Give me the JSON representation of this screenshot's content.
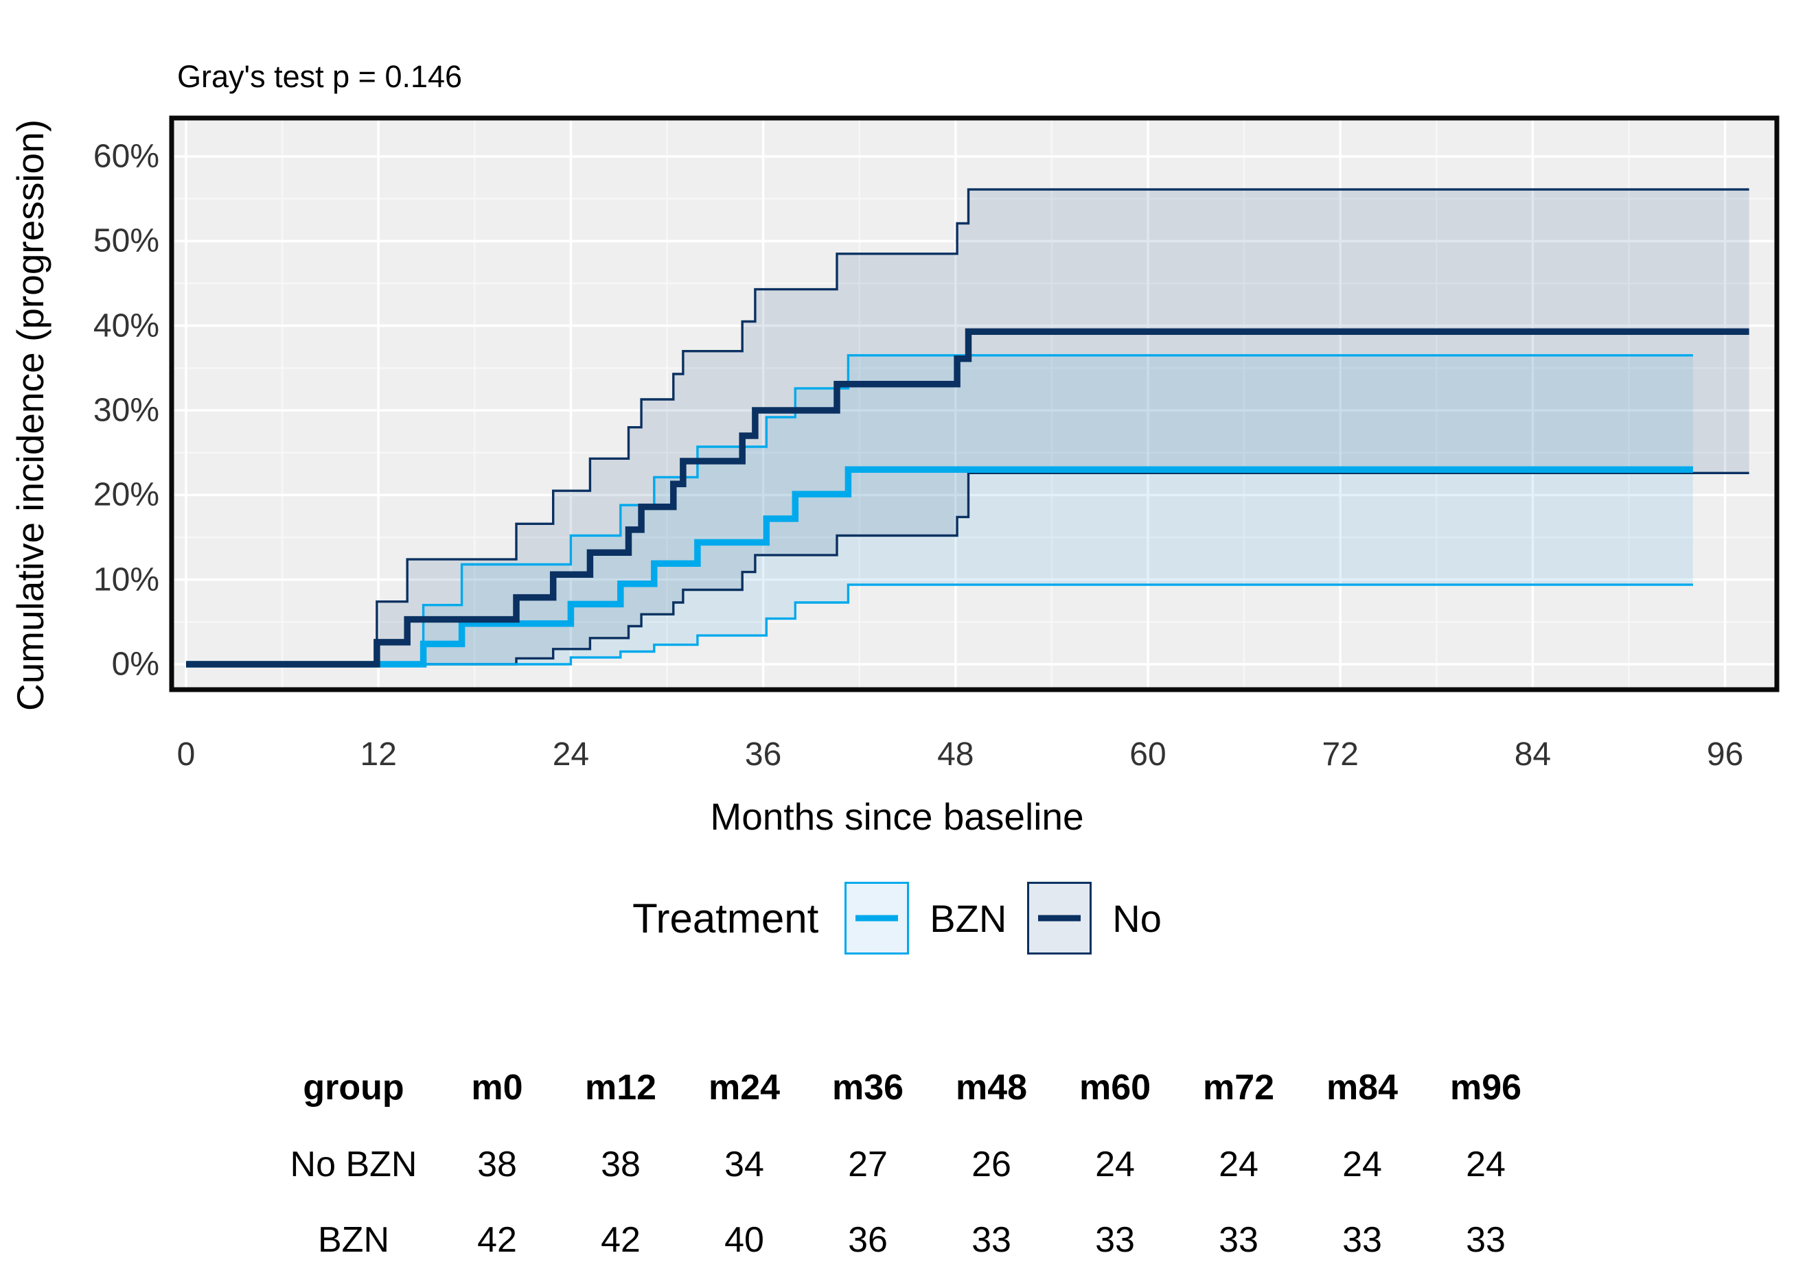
{
  "chart_data": {
    "type": "line",
    "subtype": "cumulative-incidence-step-curves-with-confidence-bands",
    "title": "Gray's test p = 0.146",
    "xlabel": "Months since baseline",
    "ylabel": "Cumulative incidence (progression)",
    "x_ticks": [
      0,
      12,
      24,
      36,
      48,
      60,
      72,
      84,
      96
    ],
    "x_minor_ticks": [
      6,
      18,
      30,
      42,
      54,
      66,
      78,
      90
    ],
    "y_ticks": [
      0,
      10,
      20,
      30,
      40,
      50,
      60
    ],
    "y_tick_labels": [
      "0%",
      "10%",
      "20%",
      "30%",
      "40%",
      "50%",
      "60%"
    ],
    "y_minor_ticks": [
      5,
      15,
      25,
      35,
      45,
      55
    ],
    "xlim": [
      -1,
      99
    ],
    "ylim": [
      -3,
      64.5
    ],
    "grid": true,
    "panel_bg": "#EFEFEF",
    "grid_major_color": "#FFFFFF",
    "grid_minor_color": "#F7F7F7",
    "legend_position": "bottom",
    "series": [
      {
        "name": "No",
        "group_label": "No BZN",
        "color": "#0A3161",
        "band_fill": "rgba(70,105,150,0.17)",
        "key_fill": "#E3E9F0",
        "end_month": 97.5,
        "estimate": [
          [
            0,
            0
          ],
          [
            11.9,
            2.6
          ],
          [
            13.8,
            5.3
          ],
          [
            20.6,
            7.9
          ],
          [
            22.9,
            10.6
          ],
          [
            25.2,
            13.2
          ],
          [
            27.6,
            15.9
          ],
          [
            28.4,
            18.6
          ],
          [
            30.4,
            21.3
          ],
          [
            31.0,
            24.0
          ],
          [
            34.7,
            27.0
          ],
          [
            35.5,
            30.0
          ],
          [
            40.6,
            33.1
          ],
          [
            48.1,
            36.1
          ],
          [
            48.8,
            39.3
          ]
        ],
        "upper_ci": [
          [
            11.9,
            7.4
          ],
          [
            13.8,
            12.4
          ],
          [
            20.6,
            16.6
          ],
          [
            22.9,
            20.5
          ],
          [
            25.2,
            24.3
          ],
          [
            27.6,
            28.0
          ],
          [
            28.4,
            31.3
          ],
          [
            30.4,
            34.3
          ],
          [
            31.0,
            37.0
          ],
          [
            34.7,
            40.5
          ],
          [
            35.5,
            44.3
          ],
          [
            40.6,
            48.5
          ],
          [
            48.1,
            52.1
          ],
          [
            48.8,
            56.1
          ]
        ],
        "lower_ci": [
          [
            20.6,
            0.7
          ],
          [
            22.9,
            1.8
          ],
          [
            25.2,
            3.1
          ],
          [
            27.6,
            4.5
          ],
          [
            28.4,
            5.9
          ],
          [
            30.4,
            7.3
          ],
          [
            31.0,
            8.8
          ],
          [
            34.7,
            10.9
          ],
          [
            35.5,
            12.9
          ],
          [
            40.6,
            15.2
          ],
          [
            48.1,
            17.4
          ],
          [
            48.8,
            22.6
          ]
        ]
      },
      {
        "name": "BZN",
        "group_label": "BZN",
        "color": "#00A9EC",
        "band_fill": "rgba(70,165,220,0.15)",
        "key_fill": "#E8F3FB",
        "end_month": 94,
        "estimate": [
          [
            0,
            0
          ],
          [
            14.8,
            2.4
          ],
          [
            17.2,
            4.8
          ],
          [
            24.0,
            7.1
          ],
          [
            27.1,
            9.5
          ],
          [
            29.2,
            11.9
          ],
          [
            31.9,
            14.4
          ],
          [
            36.2,
            17.2
          ],
          [
            38.0,
            20.1
          ],
          [
            41.3,
            23.0
          ]
        ],
        "upper_ci": [
          [
            14.8,
            7.0
          ],
          [
            17.2,
            11.8
          ],
          [
            24.0,
            15.2
          ],
          [
            27.1,
            18.8
          ],
          [
            29.2,
            22.1
          ],
          [
            31.9,
            25.7
          ],
          [
            36.2,
            29.2
          ],
          [
            38.0,
            32.6
          ],
          [
            41.3,
            36.5
          ]
        ],
        "lower_ci": [
          [
            24.0,
            0.8
          ],
          [
            27.1,
            1.5
          ],
          [
            29.2,
            2.3
          ],
          [
            31.9,
            3.4
          ],
          [
            36.2,
            5.4
          ],
          [
            38.0,
            7.3
          ],
          [
            41.3,
            9.4
          ]
        ]
      }
    ],
    "legend": {
      "title": "Treatment",
      "entries": [
        {
          "label": "BZN",
          "series": "BZN"
        },
        {
          "label": "No",
          "series": "No"
        }
      ]
    },
    "risk_table": {
      "headers": [
        "group",
        "m0",
        "m12",
        "m24",
        "m36",
        "m48",
        "m60",
        "m72",
        "m84",
        "m96"
      ],
      "rows": [
        {
          "group": "No BZN",
          "values": [
            38,
            38,
            34,
            27,
            26,
            24,
            24,
            24,
            24
          ]
        },
        {
          "group": "BZN",
          "values": [
            42,
            42,
            40,
            36,
            33,
            33,
            33,
            33,
            33
          ]
        }
      ]
    }
  },
  "annotations": {
    "pvalue_text": "Gray's test p = 0.146"
  }
}
